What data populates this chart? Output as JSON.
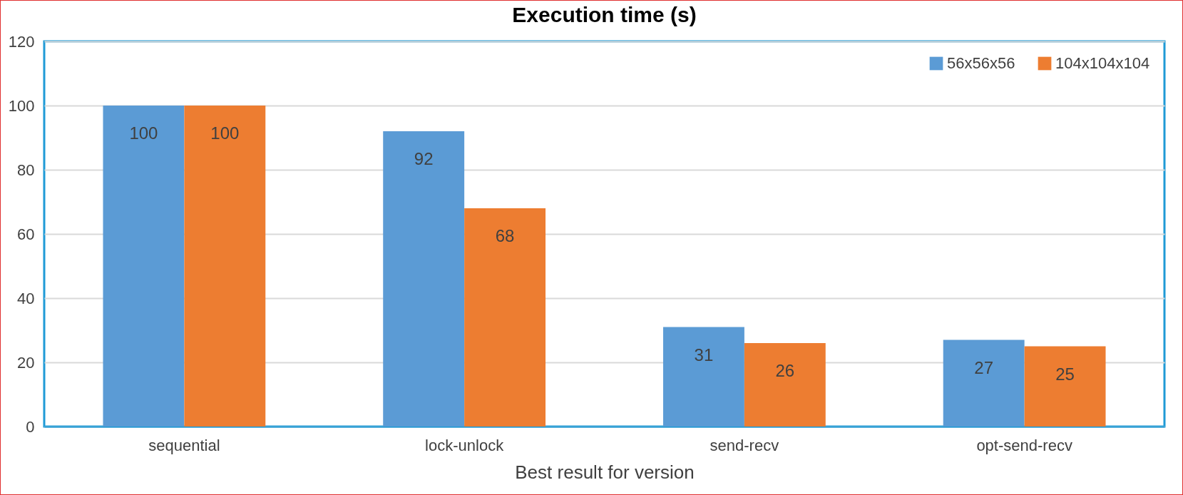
{
  "chart_data": {
    "type": "bar",
    "title": "Execution time (s)",
    "xlabel": "Best result for version",
    "categories": [
      "sequential",
      "lock-unlock",
      "send-recv",
      "opt-send-recv"
    ],
    "series": [
      {
        "name": "56x56x56",
        "color": "#5b9bd5",
        "values": [
          100,
          92,
          31,
          27
        ]
      },
      {
        "name": "104x104x104",
        "color": "#ed7d31",
        "values": [
          100,
          68,
          26,
          25
        ]
      }
    ],
    "ylim": [
      0,
      120
    ],
    "yticks": [
      0,
      20,
      40,
      60,
      80,
      100,
      120
    ],
    "grid": "y",
    "legend": "top right",
    "data_labels": true
  }
}
